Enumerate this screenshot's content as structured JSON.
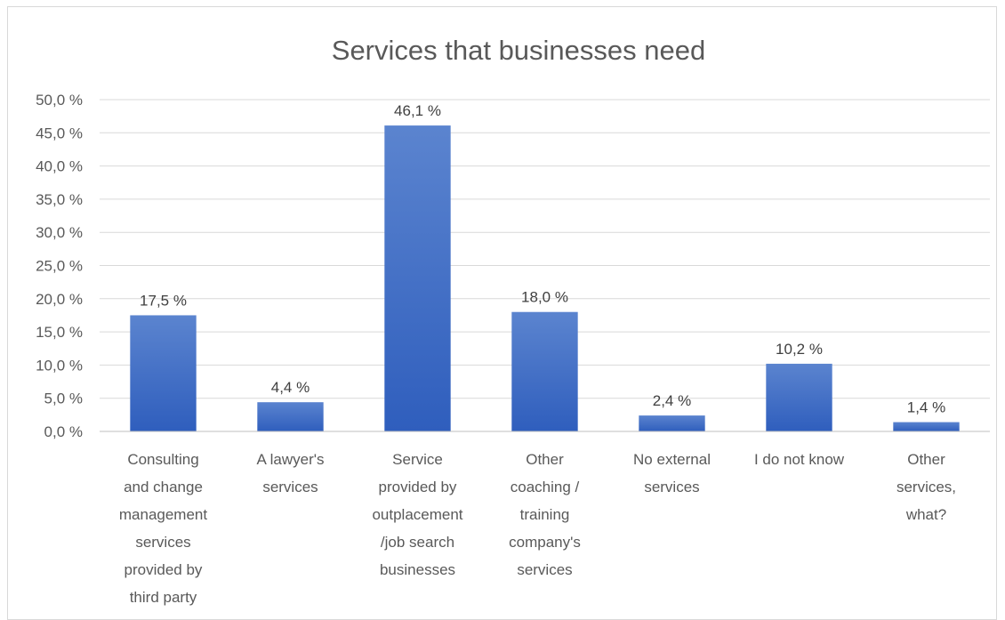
{
  "chart_data": {
    "type": "bar",
    "title": "Services that businesses need",
    "xlabel": "",
    "ylabel": "",
    "ylim": [
      0,
      50
    ],
    "ytick_step": 5,
    "ytick_labels": [
      "0,0 %",
      "5,0 %",
      "10,0 %",
      "15,0 %",
      "20,0 %",
      "25,0 %",
      "30,0 %",
      "35,0 %",
      "40,0 %",
      "45,0 %",
      "50,0 %"
    ],
    "grid": true,
    "legend": "none",
    "bar_color_top": "#5b84cf",
    "bar_color_bottom": "#2f5ebd",
    "categories": [
      [
        "Consulting",
        "and change",
        "management",
        "services",
        "provided by",
        "third party"
      ],
      [
        "A lawyer's",
        "services"
      ],
      [
        "Service",
        "provided by",
        "outplacement",
        "/job search",
        "businesses"
      ],
      [
        "Other",
        "coaching /",
        "training",
        "company's",
        "services"
      ],
      [
        "No external",
        "services"
      ],
      [
        "I do not know"
      ],
      [
        "Other",
        "services,",
        "what?"
      ]
    ],
    "values": [
      17.5,
      4.4,
      46.1,
      18.0,
      2.4,
      10.2,
      1.4
    ],
    "value_labels": [
      "17,5 %",
      "4,4 %",
      "46,1 %",
      "18,0 %",
      "2,4 %",
      "10,2 %",
      "1,4 %"
    ]
  }
}
